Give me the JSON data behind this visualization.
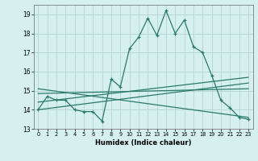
{
  "xlabel": "Humidex (Indice chaleur)",
  "xlim": [
    -0.5,
    23.5
  ],
  "ylim": [
    13,
    19.5
  ],
  "yticks": [
    13,
    14,
    15,
    16,
    17,
    18,
    19
  ],
  "xticks": [
    0,
    1,
    2,
    3,
    4,
    5,
    6,
    7,
    8,
    9,
    10,
    11,
    12,
    13,
    14,
    15,
    16,
    17,
    18,
    19,
    20,
    21,
    22,
    23
  ],
  "bg_color": "#d6efef",
  "line_color": "#2a7a6a",
  "grid_color": "#b8d8d8",
  "main_x": [
    0,
    1,
    2,
    3,
    4,
    5,
    6,
    7,
    8,
    9,
    10,
    11,
    12,
    13,
    14,
    15,
    16,
    17,
    18,
    19,
    20,
    21,
    22,
    23
  ],
  "main_y": [
    14.0,
    14.7,
    14.5,
    14.5,
    14.0,
    13.9,
    13.9,
    13.4,
    15.6,
    15.2,
    17.2,
    17.8,
    18.8,
    17.9,
    19.2,
    18.0,
    18.7,
    17.3,
    17.0,
    15.8,
    14.5,
    14.1,
    13.6,
    13.5
  ],
  "trend1_x": [
    0,
    23
  ],
  "trend1_y": [
    14.0,
    15.4
  ],
  "trend2_x": [
    0,
    23
  ],
  "trend2_y": [
    14.85,
    15.1
  ],
  "trend3_x": [
    0,
    23
  ],
  "trend3_y": [
    15.1,
    13.6
  ],
  "trend4_x": [
    0,
    23
  ],
  "trend4_y": [
    14.4,
    15.7
  ]
}
